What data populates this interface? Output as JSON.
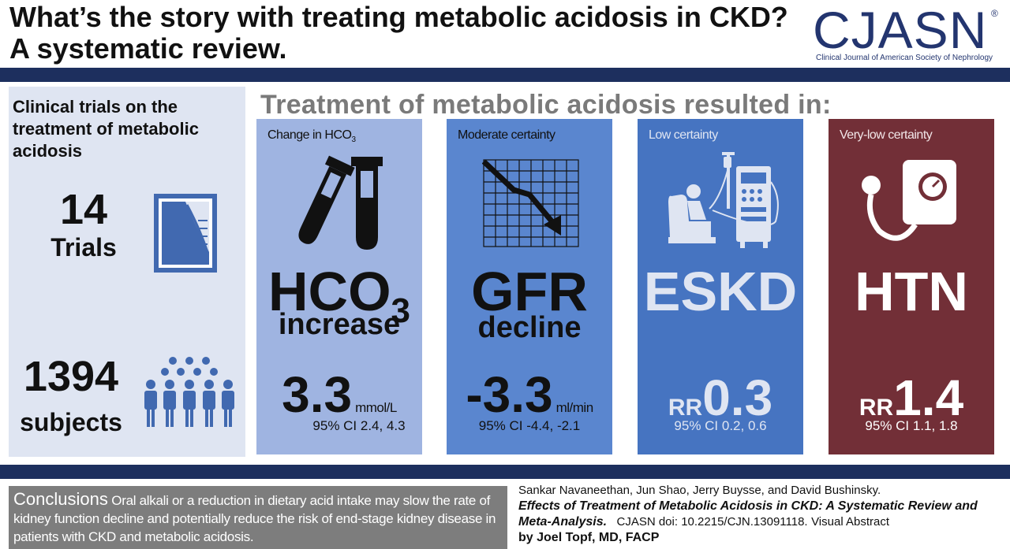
{
  "header": {
    "title_line1": "What’s the story with treating metabolic acidosis in CKD?",
    "title_line2": "A systematic review.",
    "logo_text": "CJASN",
    "logo_registered": "®",
    "logo_subtitle": "Clinical Journal of American Society of Nephrology"
  },
  "left_panel": {
    "heading": "Clinical trials on the treatment of metabolic acidosis",
    "trials_count": "14",
    "trials_label": "Trials",
    "subjects_count": "1394",
    "subjects_label": "subjects",
    "icons": [
      "document-icon",
      "people-icon"
    ]
  },
  "results": {
    "heading": "Treatment of metabolic acidosis resulted in:",
    "cards": [
      {
        "certainty": "Change in HCO",
        "certainty_sub": "3",
        "big_line1": "HCO",
        "big_sub": "3",
        "big_line2": "increase",
        "value": "3.3",
        "unit": "mmol/L",
        "ci": "95% CI 2.4, 4.3",
        "icon": "test-tubes-icon",
        "color": "#9fb4e1"
      },
      {
        "certainty": "Moderate certainty",
        "big_line1": "GFR",
        "big_line2": "decline",
        "value": "-3.3",
        "unit": "ml/min",
        "ci": "95% CI -4.4, -2.1",
        "icon": "declining-chart-icon",
        "color": "#5a86cf"
      },
      {
        "certainty": "Low certainty",
        "big_line1": "ESKD",
        "rr_label": "RR",
        "value": "0.3",
        "ci": "95% CI 0.2, 0.6",
        "icon": "dialysis-icon",
        "color": "#4674c1"
      },
      {
        "certainty": "Very-low certainty",
        "big_line1": "HTN",
        "rr_label": "RR",
        "value": "1.4",
        "ci": "95% CI 1.1, 1.8",
        "icon": "blood-pressure-cuff-icon",
        "color": "#722f37"
      }
    ]
  },
  "conclusions": {
    "label": "Conclusions",
    "text": "Oral alkali or a reduction in dietary acid intake may slow the rate of kidney function decline and potentially reduce the risk of end-stage kidney disease in patients with CKD and metabolic acidosis."
  },
  "citation": {
    "authors": "Sankar Navaneethan, Jun Shao, Jerry Buysse, and David Bushinsky.",
    "article_title": "Effects of Treatment of Metabolic Acidosis in CKD: A Systematic Review and Meta-Analysis.",
    "doi": "CJASN doi: 10.2215/CJN.13091118.",
    "visual_abstract": "Visual Abstract",
    "credit": "by Joel Topf, MD, FACP"
  }
}
